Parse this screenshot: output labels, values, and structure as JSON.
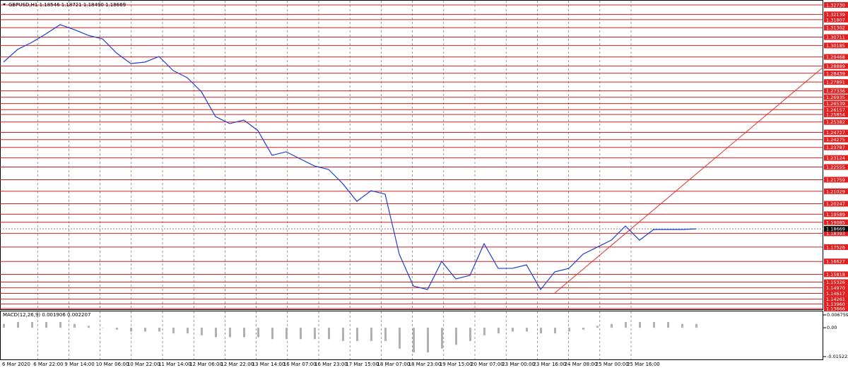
{
  "header": "GBPUSD,H1  1.18546 1.18721 1.18490 1.18669",
  "price_levels": [
    {
      "value": 1.3273,
      "label": "1.32730"
    },
    1.32139,
    1.31807,
    1.31302,
    1.30711,
    1.30185,
    1.29468,
    1.28889,
    1.28439,
    1.27891,
    1.27336,
    1.26935,
    1.26539,
    1.26157,
    1.25854,
    1.25382,
    1.24727,
    1.24275,
    1.23787,
    1.23124,
    1.22555,
    1.21759,
    1.21029,
    1.20247,
    1.19589,
    1.19085,
    1.18393,
    1.17526,
    1.16627,
    1.15818,
    1.15326,
    {
      "value": 1.1497,
      "label": "1.14970"
    },
    1.14617,
    1.14261,
    {
      "value": 1.1396,
      "label": "1.13960"
    },
    1.13666
  ],
  "current_price": 1.18669,
  "close": [
    1.2914,
    1.2994,
    1.3038,
    1.3091,
    1.3149,
    1.3118,
    1.3082,
    1.306,
    1.2971,
    1.2905,
    1.2914,
    1.2949,
    1.2861,
    1.2816,
    1.2728,
    1.2572,
    1.2528,
    1.255,
    1.2484,
    1.2329,
    1.2351,
    1.2306,
    1.2262,
    1.224,
    1.2151,
    1.204,
    1.2107,
    1.2085,
    1.1708,
    1.1508,
    1.1486,
    1.1663,
    1.1553,
    1.1575,
    1.1774,
    1.1619,
    1.1619,
    1.1641,
    1.1486,
    1.1597,
    1.1619,
    1.1708,
    1.1752,
    1.1796,
    1.1885,
    1.1796,
    1.1863,
    1.1863,
    1.1863,
    1.1867
  ],
  "macd_title": "MACD(12,26,9) 0.001906 0.002207",
  "macd_ticks": [
    0.006759,
    {
      "value": 0,
      "label": "0.00"
    },
    -0.015222
  ],
  "macd": [
    0.002,
    0.003,
    0.003,
    0.003,
    0.003,
    0.002,
    0.001,
    0,
    -0.001,
    -0.002,
    -0.002,
    -0.002,
    -0.003,
    -0.003,
    -0.004,
    -0.005,
    -0.005,
    -0.005,
    -0.005,
    -0.006,
    -0.006,
    -0.006,
    -0.006,
    -0.006,
    -0.007,
    -0.007,
    -0.007,
    -0.007,
    -0.011,
    -0.013,
    -0.013,
    -0.011,
    -0.009,
    -0.007,
    -0.004,
    -0.003,
    -0.002,
    -0.002,
    -0.003,
    -0.003,
    -0.002,
    -0.001,
    0.001,
    0.002,
    0.003,
    0.003,
    0.003,
    0.003,
    0.002,
    0.002
  ],
  "time_labels": [
    "6 Mar 2020",
    "6 Mar 22:00",
    "9 Mar 14:00",
    "10 Mar 06:00",
    "10 Mar 22:00",
    "11 Mar 14:00",
    "12 Mar 06:00",
    "12 Mar 22:00",
    "13 Mar 14:00",
    "16 Mar 07:00",
    "16 Mar 23:00",
    "17 Mar 15:00",
    "18 Mar 07:00",
    "18 Mar 23:00",
    "19 Mar 15:00",
    "20 Mar 07:00",
    "23 Mar 00:00",
    "23 Mar 16:00",
    "24 Mar 08:00",
    "25 Mar 00:00",
    "25 Mar 16:00"
  ]
}
